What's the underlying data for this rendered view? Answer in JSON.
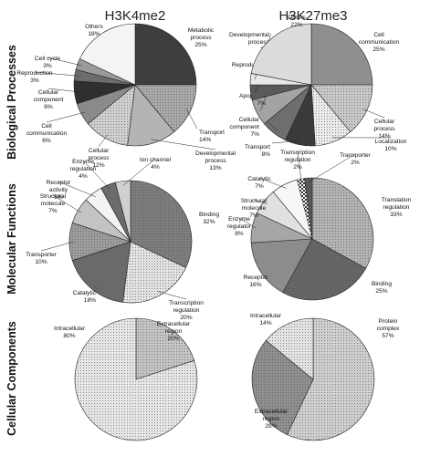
{
  "column_titles": [
    "H3K4me2",
    "H3K27me3"
  ],
  "row_titles": [
    "Biological Processes",
    "Molecular Functions",
    "Cellular Components"
  ],
  "chart_data": [
    {
      "type": "pie",
      "id": "bp-h3k4me2",
      "row": 0,
      "col": 0,
      "slices": [
        {
          "label": "Metabolic process",
          "pct": 25,
          "color": "#3e3e3e"
        },
        {
          "label": "Transport",
          "pct": 14,
          "color": "#a8a8a8"
        },
        {
          "label": "Developmental process",
          "pct": 13,
          "color": "#b4b4b4"
        },
        {
          "label": "Cellular process",
          "pct": 12,
          "color": "#cfcfcf"
        },
        {
          "label": "Cell communication",
          "pct": 6,
          "color": "#8a8a8a"
        },
        {
          "label": "Cellular component",
          "pct": 6,
          "color": "#2f2f2f"
        },
        {
          "label": "Reproduction",
          "pct": 3,
          "color": "#6c6c6c"
        },
        {
          "label": "Cell cycle",
          "pct": 3,
          "color": "#9a9a9a"
        },
        {
          "label": "Others",
          "pct": 18,
          "color": "#f4f4f4"
        }
      ]
    },
    {
      "type": "pie",
      "id": "bp-h3k27me3",
      "row": 0,
      "col": 1,
      "slices": [
        {
          "label": "Cell communication",
          "pct": 25,
          "color": "#8f8f8f"
        },
        {
          "label": "Cellular process",
          "pct": 14,
          "color": "#c9c9c9"
        },
        {
          "label": "Localization",
          "pct": 10,
          "color": "#ebebeb"
        },
        {
          "label": "Transport",
          "pct": 8,
          "color": "#3a3a3a"
        },
        {
          "label": "Cellular component",
          "pct": 7,
          "color": "#6e6e6e"
        },
        {
          "label": "Apoptosis",
          "pct": 7,
          "color": "#a3a3a3"
        },
        {
          "label": "Reproduction",
          "pct": 4,
          "color": "#5a5a5a"
        },
        {
          "label": "Developmental process",
          "pct": 3,
          "color": "#e8e8e8"
        },
        {
          "label": "Others",
          "pct": 22,
          "color": "#dcdcdc"
        }
      ]
    },
    {
      "type": "pie",
      "id": "mf-h3k4me2",
      "row": 1,
      "col": 0,
      "slices": [
        {
          "label": "Binding",
          "pct": 32,
          "color": "#7d7d7d"
        },
        {
          "label": "Transcription regulation",
          "pct": 20,
          "color": "#e2e2e2"
        },
        {
          "label": "Catalytic",
          "pct": 18,
          "color": "#6a6a6a"
        },
        {
          "label": "Transporter",
          "pct": 10,
          "color": "#9c9c9c"
        },
        {
          "label": "Structural molecule",
          "pct": 7,
          "color": "#c3c3c3"
        },
        {
          "label": "Receptor activity",
          "pct": 5,
          "color": "#f3f3f3"
        },
        {
          "label": "Enzyme regulation",
          "pct": 4,
          "color": "#6b6b6b"
        },
        {
          "label": "Ion channel",
          "pct": 4,
          "color": "#d0d0d0"
        }
      ]
    },
    {
      "type": "pie",
      "id": "mf-h3k27me3",
      "row": 1,
      "col": 1,
      "slices": [
        {
          "label": "Translation regulation",
          "pct": 33,
          "color": "#b3b3b3"
        },
        {
          "label": "Binding",
          "pct": 25,
          "color": "#666666"
        },
        {
          "label": "Receptor",
          "pct": 16,
          "color": "#8c8c8c"
        },
        {
          "label": "Enzyme regulator",
          "pct": 8,
          "color": "#a6a6a6"
        },
        {
          "label": "Structural molecule",
          "pct": 7,
          "color": "#e0e0e0"
        },
        {
          "label": "Catalytic",
          "pct": 7,
          "color": "#f7f7f7"
        },
        {
          "label": "Transcription regulation",
          "pct": 2,
          "color": "#ffffff"
        },
        {
          "label": "Transporter",
          "pct": 2,
          "color": "#595959"
        }
      ]
    },
    {
      "type": "pie",
      "id": "cc-h3k4me2",
      "row": 2,
      "col": 0,
      "slices": [
        {
          "label": "Extracellular region",
          "pct": 20,
          "color": "#c4c4c4"
        },
        {
          "label": "Intracellular",
          "pct": 80,
          "color": "#e6e6e6"
        }
      ]
    },
    {
      "type": "pie",
      "id": "cc-h3k27me3",
      "row": 2,
      "col": 1,
      "slices": [
        {
          "label": "Protein complex",
          "pct": 57,
          "color": "#cfcfcf"
        },
        {
          "label": "Extracellular region",
          "pct": 29,
          "color": "#8f8f8f"
        },
        {
          "label": "Intracellular",
          "pct": 14,
          "color": "#e4e4e4"
        }
      ]
    }
  ]
}
